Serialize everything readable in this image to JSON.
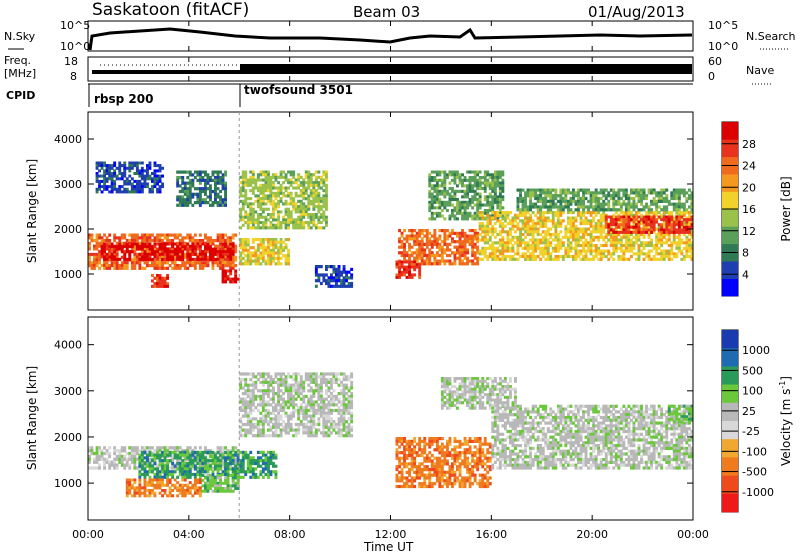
{
  "header": {
    "station": "Saskatoon (fitACF)",
    "beam": "Beam 03",
    "date": "01/Aug/2013"
  },
  "top_panel": {
    "left_label": "N.Sky",
    "right_label": "N.Search",
    "left_ticks": [
      "10^5",
      "10^0"
    ],
    "right_ticks": [
      "10^5",
      "10^0"
    ]
  },
  "freq_panel": {
    "label_line1": "Freq.",
    "label_line2": "[MHz]",
    "left_ticks": [
      "18",
      "8"
    ],
    "right_ticks": [
      "60",
      "0"
    ],
    "right_label": "Nave"
  },
  "cpid": {
    "label": "CPID",
    "modes": [
      {
        "name": "rbsp 200",
        "start_hour": 0
      },
      {
        "name": "twofsound 3501",
        "start_hour": 6
      }
    ]
  },
  "chart_data": [
    {
      "type": "heatmap",
      "title": "",
      "ylabel": "Slant Range [km]",
      "xlabel": "Time UT",
      "xlim_hours": [
        0,
        24
      ],
      "ylim": [
        200,
        4600
      ],
      "yticks": [
        "1000",
        "2000",
        "3000",
        "4000"
      ],
      "xticks": [
        "00:00",
        "04:00",
        "08:00",
        "12:00",
        "16:00",
        "20:00",
        "00:00"
      ],
      "colorbar": {
        "label": "Power [dB]",
        "ticks": [
          "4",
          "8",
          "12",
          "16",
          "20",
          "24",
          "28"
        ],
        "colors": [
          "#0000ff",
          "#1f3fb0",
          "#2f7a55",
          "#5aa05a",
          "#9ac24a",
          "#f0d22a",
          "#f39a1e",
          "#f06a1e",
          "#e8321e",
          "#dd0000"
        ]
      },
      "regions": [
        {
          "t0": 0.0,
          "t1": 5.9,
          "r0": 1100,
          "r1": 1900,
          "level": 7
        },
        {
          "t0": 0.5,
          "t1": 5.8,
          "r0": 1300,
          "r1": 1700,
          "level": 9
        },
        {
          "t0": 5.3,
          "t1": 6.0,
          "r0": 800,
          "r1": 1100,
          "level": 9
        },
        {
          "t0": 2.5,
          "t1": 3.2,
          "r0": 700,
          "r1": 1000,
          "level": 8
        },
        {
          "t0": 0.3,
          "t1": 3.0,
          "r0": 2800,
          "r1": 3500,
          "level": 1
        },
        {
          "t0": 3.5,
          "t1": 5.5,
          "r0": 2500,
          "r1": 3300,
          "level": 2
        },
        {
          "t0": 6.0,
          "t1": 9.5,
          "r0": 2000,
          "r1": 3300,
          "level": 4
        },
        {
          "t0": 6.0,
          "t1": 8.0,
          "r0": 1200,
          "r1": 1800,
          "level": 5
        },
        {
          "t0": 9.0,
          "t1": 10.5,
          "r0": 700,
          "r1": 1200,
          "level": 1
        },
        {
          "t0": 12.3,
          "t1": 15.5,
          "r0": 1200,
          "r1": 2000,
          "level": 7
        },
        {
          "t0": 12.2,
          "t1": 13.2,
          "r0": 900,
          "r1": 1300,
          "level": 8
        },
        {
          "t0": 13.5,
          "t1": 16.5,
          "r0": 2200,
          "r1": 3300,
          "level": 3
        },
        {
          "t0": 15.5,
          "t1": 24.0,
          "r0": 1300,
          "r1": 2400,
          "level": 5
        },
        {
          "t0": 20.5,
          "t1": 24.0,
          "r0": 1900,
          "r1": 2300,
          "level": 8
        },
        {
          "t0": 17.0,
          "t1": 24.0,
          "r0": 2400,
          "r1": 2900,
          "level": 3
        }
      ]
    },
    {
      "type": "heatmap",
      "title": "",
      "ylabel": "Slant Range [km]",
      "xlabel": "Time UT",
      "xlim_hours": [
        0,
        24
      ],
      "ylim": [
        200,
        4600
      ],
      "yticks": [
        "1000",
        "2000",
        "3000",
        "4000"
      ],
      "xticks": [
        "00:00",
        "04:00",
        "08:00",
        "12:00",
        "16:00",
        "20:00",
        "00:00"
      ],
      "colorbar": {
        "label": "Velocity [m s^-1]",
        "ticks": [
          "1000",
          "500",
          "100",
          "25",
          "-25",
          "-100",
          "-500",
          "-1000"
        ],
        "colors": [
          "#1a3ab0",
          "#1f6ab0",
          "#2a9a5a",
          "#6ac83a",
          "#b8b8b8",
          "#d8d8d8",
          "#f0a830",
          "#f07a1e",
          "#ee4a1e",
          "#ee1a1a"
        ]
      },
      "regions": [
        {
          "t0": 0.0,
          "t1": 6.0,
          "r0": 1300,
          "r1": 1800,
          "level": 4
        },
        {
          "t0": 2.0,
          "t1": 7.5,
          "r0": 1100,
          "r1": 1700,
          "level": 2
        },
        {
          "t0": 1.5,
          "t1": 4.5,
          "r0": 700,
          "r1": 1100,
          "level": 7
        },
        {
          "t0": 4.5,
          "t1": 6.0,
          "r0": 800,
          "r1": 1200,
          "level": 3
        },
        {
          "t0": 12.2,
          "t1": 16.0,
          "r0": 900,
          "r1": 2000,
          "level": 7
        },
        {
          "t0": 6.0,
          "t1": 10.5,
          "r0": 2000,
          "r1": 3400,
          "level": 4
        },
        {
          "t0": 16.0,
          "t1": 24.0,
          "r0": 1300,
          "r1": 2700,
          "level": 4
        },
        {
          "t0": 14.0,
          "t1": 17.0,
          "r0": 2600,
          "r1": 3300,
          "level": 4
        },
        {
          "t0": 23.0,
          "t1": 24.0,
          "r0": 2300,
          "r1": 2700,
          "level": 3
        }
      ]
    }
  ]
}
